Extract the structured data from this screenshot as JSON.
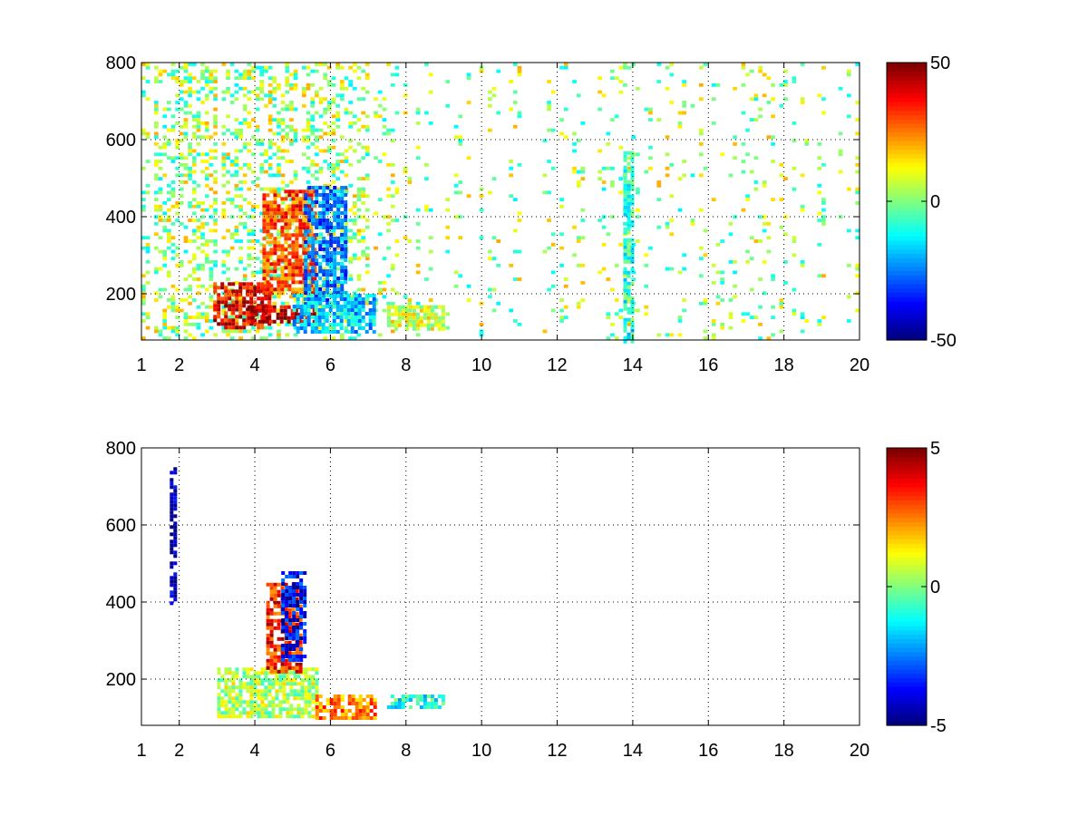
{
  "chart_data": [
    {
      "type": "heatmap",
      "title": "",
      "xlabel": "",
      "ylabel": "",
      "xlim": [
        1,
        20
      ],
      "ylim": [
        80,
        800
      ],
      "xticks": [
        1,
        2,
        4,
        6,
        8,
        10,
        12,
        14,
        16,
        18,
        20
      ],
      "xtick_labels": [
        "1",
        "2",
        "4",
        "6",
        "8",
        "10",
        "12",
        "14",
        "16",
        "18",
        "20"
      ],
      "yticks": [
        200,
        400,
        600,
        800
      ],
      "ytick_labels": [
        "200",
        "400",
        "600",
        "800"
      ],
      "grid": true,
      "colormap": "jet",
      "colorbar": {
        "min": -50,
        "max": 50,
        "ticks": [
          50,
          0,
          -50
        ],
        "tick_labels": [
          "50",
          "0",
          "-50"
        ]
      },
      "features": [
        {
          "x_range": [
            2.9,
            4.4
          ],
          "y_range": [
            110,
            230
          ],
          "value": 38
        },
        {
          "x_range": [
            3.8,
            5.6
          ],
          "y_range": [
            130,
            170
          ],
          "value": 45
        },
        {
          "x_range": [
            4.2,
            5.6
          ],
          "y_range": [
            200,
            470
          ],
          "value": 30
        },
        {
          "x_range": [
            5.3,
            6.4
          ],
          "y_range": [
            170,
            480
          ],
          "value": -25
        },
        {
          "x_range": [
            5.0,
            7.2
          ],
          "y_range": [
            100,
            200
          ],
          "value": -18
        },
        {
          "x_range": [
            7.5,
            9.0
          ],
          "y_range": [
            110,
            170
          ],
          "value": 8
        },
        {
          "x_range": [
            13.75,
            13.95
          ],
          "y_range": [
            80,
            570
          ],
          "value": -8
        }
      ]
    },
    {
      "type": "heatmap",
      "title": "",
      "xlabel": "",
      "ylabel": "",
      "xlim": [
        1,
        20
      ],
      "ylim": [
        80,
        800
      ],
      "xticks": [
        1,
        2,
        4,
        6,
        8,
        10,
        12,
        14,
        16,
        18,
        20
      ],
      "xtick_labels": [
        "1",
        "2",
        "4",
        "6",
        "8",
        "10",
        "12",
        "14",
        "16",
        "18",
        "20"
      ],
      "yticks": [
        200,
        400,
        600,
        800
      ],
      "ytick_labels": [
        "200",
        "400",
        "600",
        "800"
      ],
      "grid": true,
      "colormap": "jet",
      "colorbar": {
        "min": -5,
        "max": 5,
        "ticks": [
          5,
          0,
          -5
        ],
        "tick_labels": [
          "5",
          "0",
          "-5"
        ]
      },
      "features": [
        {
          "x_range": [
            3.0,
            5.6
          ],
          "y_range": [
            100,
            230
          ],
          "value": 0.5
        },
        {
          "x_range": [
            4.3,
            5.2
          ],
          "y_range": [
            220,
            450
          ],
          "value": 3.5
        },
        {
          "x_range": [
            4.7,
            5.3
          ],
          "y_range": [
            250,
            480
          ],
          "value": -3.8
        },
        {
          "x_range": [
            5.6,
            7.2
          ],
          "y_range": [
            100,
            160
          ],
          "value": 2.5
        },
        {
          "x_range": [
            7.5,
            9.0
          ],
          "y_range": [
            130,
            160
          ],
          "value": -1
        },
        {
          "x_range": [
            1.75,
            1.85
          ],
          "y_range": [
            400,
            750
          ],
          "value": -4.5
        }
      ]
    }
  ]
}
